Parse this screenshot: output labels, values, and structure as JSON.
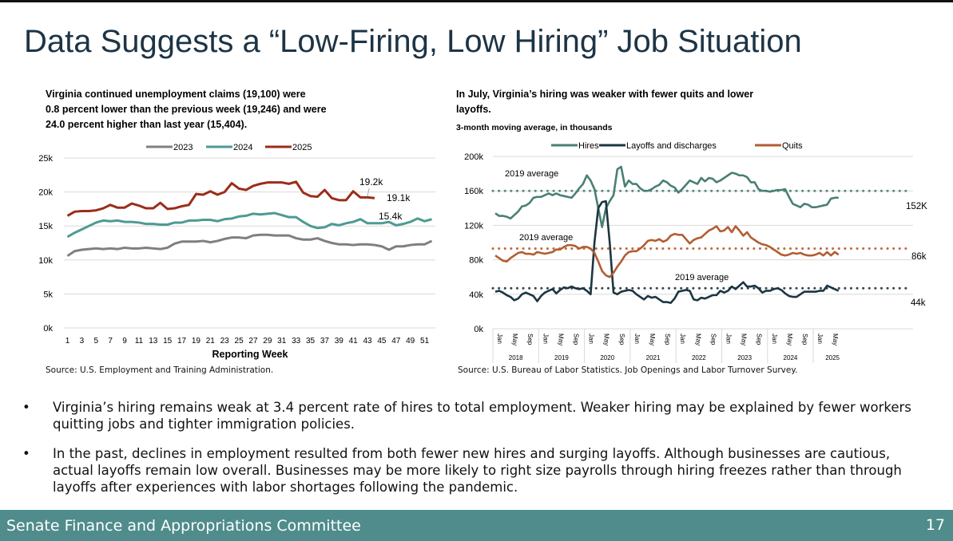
{
  "title": "Data Suggests a “Low-Firing, Low Hiring” Job Situation",
  "left": {
    "title_lines": [
      "Virginia continued unemployment claims (19,100) were",
      "0.8 percent lower than the previous week (19,246) and were",
      "24.0 percent higher than last year (15,404)."
    ],
    "source": "Source: U.S. Employment and Training Administration."
  },
  "right": {
    "title_lines": [
      "In July, Virginia’s hiring was weaker with fewer quits and lower",
      "layoffs."
    ],
    "subtitle": "3-month moving average, in thousands",
    "source": "Source: U.S. Bureau of Labor Statistics. Job Openings and Labor Turnover Survey."
  },
  "chart_data": [
    {
      "type": "line",
      "xlabel": "Reporting Week",
      "ylim": [
        0,
        25
      ],
      "yticks": [
        "0k",
        "5k",
        "10k",
        "15k",
        "20k",
        "25k"
      ],
      "grid": true,
      "legend": "top",
      "xticks": [
        1,
        3,
        5,
        7,
        9,
        11,
        13,
        15,
        17,
        19,
        21,
        23,
        25,
        27,
        29,
        31,
        33,
        35,
        37,
        39,
        41,
        43,
        45,
        47,
        49,
        51
      ],
      "series": [
        {
          "name": "2023",
          "color": "#7f7f7f",
          "values": [
            10.6,
            11.3,
            11.5,
            11.6,
            11.7,
            11.6,
            11.7,
            11.6,
            11.8,
            11.7,
            11.7,
            11.8,
            11.7,
            11.6,
            11.8,
            12.4,
            12.7,
            12.7,
            12.7,
            12.8,
            12.6,
            12.8,
            13.1,
            13.3,
            13.3,
            13.2,
            13.6,
            13.7,
            13.7,
            13.6,
            13.6,
            13.6,
            13.2,
            13.0,
            13.0,
            13.2,
            12.8,
            12.5,
            12.3,
            12.3,
            12.2,
            12.3,
            12.3,
            12.2,
            12.0,
            11.5,
            12.0,
            12.0,
            12.2,
            12.3,
            12.3,
            12.8
          ]
        },
        {
          "name": "2024",
          "color": "#4e9a93",
          "values": [
            13.4,
            14.0,
            14.5,
            15.0,
            15.5,
            15.8,
            15.7,
            15.8,
            15.6,
            15.6,
            15.5,
            15.3,
            15.3,
            15.2,
            15.2,
            15.5,
            15.5,
            15.8,
            15.8,
            15.9,
            15.9,
            15.7,
            16.0,
            16.1,
            16.4,
            16.5,
            16.8,
            16.7,
            16.8,
            16.9,
            16.6,
            16.3,
            16.3,
            15.6,
            15.0,
            14.7,
            14.8,
            15.3,
            15.1,
            15.4,
            15.6,
            16.0,
            15.4,
            15.4,
            15.4,
            15.6,
            15.1,
            15.3,
            15.6,
            16.1,
            15.7,
            16.0
          ]
        },
        {
          "name": "2025",
          "color": "#9b2d1a",
          "values": [
            16.5,
            17.1,
            17.2,
            17.2,
            17.3,
            17.6,
            18.1,
            17.7,
            17.7,
            18.3,
            18.0,
            17.6,
            17.6,
            18.4,
            17.5,
            17.6,
            17.9,
            18.1,
            19.7,
            19.6,
            20.1,
            19.6,
            20.0,
            21.3,
            20.5,
            20.3,
            20.9,
            21.2,
            21.4,
            21.4,
            21.4,
            21.2,
            21.5,
            19.9,
            19.4,
            19.3,
            20.3,
            19.1,
            18.8,
            18.8,
            20.1,
            19.2,
            19.2,
            19.1
          ]
        }
      ],
      "annotations": [
        "19.2k",
        "19.1k",
        "15.4k"
      ]
    },
    {
      "type": "line",
      "ylim": [
        0,
        200
      ],
      "yticks": [
        "0k",
        "40k",
        "80k",
        "120k",
        "160k",
        "200k"
      ],
      "grid": true,
      "legend": "top",
      "month_labels": [
        "Jan",
        "May",
        "Sep"
      ],
      "years": [
        "2018",
        "2019",
        "2020",
        "2021",
        "2022",
        "2023",
        "2024",
        "2025"
      ],
      "x_start": "2018-01",
      "x_end": "2025-07",
      "series": [
        {
          "name": "Hires",
          "color": "#4a7f74",
          "average_2019": 160,
          "end_label": "152K",
          "values": [
            134,
            131,
            131,
            130,
            128,
            132,
            136,
            142,
            143,
            146,
            152,
            153,
            153,
            155,
            157,
            155,
            157,
            155,
            154,
            153,
            152,
            157,
            163,
            168,
            178,
            172,
            162,
            140,
            118,
            140,
            148,
            155,
            185,
            188,
            165,
            172,
            168,
            168,
            163,
            160,
            160,
            162,
            165,
            167,
            172,
            170,
            166,
            164,
            158,
            162,
            167,
            172,
            170,
            168,
            175,
            171,
            175,
            174,
            170,
            172,
            175,
            178,
            181,
            180,
            178,
            178,
            176,
            170,
            170,
            162,
            160,
            160,
            159,
            160,
            161,
            161,
            162,
            153,
            145,
            143,
            141,
            145,
            144,
            141,
            141,
            142,
            143,
            144,
            151,
            152,
            152
          ]
        },
        {
          "name": "Layoffs and discharges",
          "color": "#1c3640",
          "average_2019": 47,
          "end_label": "44k",
          "values": [
            43,
            44,
            42,
            39,
            37,
            33,
            35,
            40,
            42,
            40,
            38,
            32,
            38,
            42,
            44,
            46,
            41,
            45,
            48,
            47,
            49,
            47,
            46,
            47,
            44,
            40,
            100,
            140,
            147,
            148,
            100,
            42,
            40,
            43,
            44,
            45,
            44,
            40,
            37,
            34,
            38,
            36,
            37,
            34,
            31,
            31,
            30,
            35,
            43,
            44,
            45,
            44,
            34,
            33,
            36,
            35,
            37,
            39,
            39,
            44,
            42,
            44,
            49,
            46,
            50,
            54,
            49,
            49,
            50,
            47,
            42,
            44,
            44,
            46,
            47,
            45,
            41,
            38,
            37,
            37,
            40,
            43,
            43,
            43,
            43,
            44,
            44,
            50,
            48,
            46,
            44
          ]
        },
        {
          "name": "Quits",
          "color": "#b35d31",
          "average_2019": 93,
          "end_label": "86k",
          "values": [
            85,
            82,
            79,
            78,
            82,
            85,
            88,
            89,
            87,
            87,
            86,
            89,
            88,
            87,
            88,
            89,
            92,
            92,
            95,
            97,
            97,
            96,
            93,
            95,
            95,
            93,
            88,
            78,
            67,
            62,
            60,
            65,
            72,
            78,
            85,
            89,
            90,
            90,
            93,
            97,
            102,
            103,
            102,
            104,
            101,
            103,
            108,
            110,
            109,
            109,
            104,
            99,
            103,
            105,
            106,
            110,
            114,
            116,
            119,
            113,
            114,
            118,
            112,
            119,
            114,
            108,
            112,
            106,
            103,
            100,
            98,
            97,
            95,
            92,
            89,
            86,
            85,
            86,
            88,
            87,
            88,
            86,
            85,
            85,
            86,
            88,
            85,
            89,
            85,
            89,
            86
          ]
        }
      ],
      "average_label": "2019 average"
    }
  ],
  "bullets": [
    "Virginia’s hiring remains weak at 3.4 percent rate of hires to total employment. Weaker hiring may be explained by fewer workers quitting jobs and tighter immigration policies.",
    "In the past, declines in employment resulted from both fewer new hires and surging layoffs. Although businesses are cautious, actual layoffs remain low overall. Businesses may be more likely to right size payrolls through hiring freezes rather than through layoffs after experiences with labor shortages following the pandemic."
  ],
  "footer": {
    "org": "Senate Finance and Appropriations Committee",
    "page": "17"
  }
}
